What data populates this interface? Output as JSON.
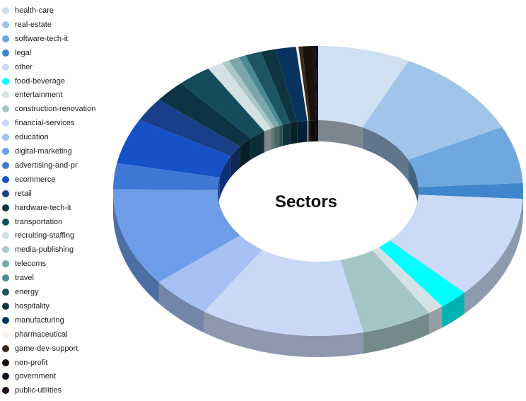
{
  "chart_data": {
    "type": "pie",
    "title": "Sectors",
    "legend_position": "left",
    "series": [
      {
        "name": "health-care",
        "value": 7.6,
        "color": "#cfe0f2"
      },
      {
        "name": "real-estate",
        "value": 10.9,
        "color": "#a1c5ea"
      },
      {
        "name": "software-tech-it",
        "value": 6.7,
        "color": "#6fa8de"
      },
      {
        "name": "legal",
        "value": 1.8,
        "color": "#3f86cc"
      },
      {
        "name": "other",
        "value": 12.0,
        "color": "#cadaf7"
      },
      {
        "name": "food-beverage",
        "value": 2.4,
        "color": "#00ffff"
      },
      {
        "name": "entertainment",
        "value": 1.3,
        "color": "#d5e2e5"
      },
      {
        "name": "construction-renovation",
        "value": 5.8,
        "color": "#a4c4c8"
      },
      {
        "name": "financial-services",
        "value": 13.5,
        "color": "#c9d8f7"
      },
      {
        "name": "education",
        "value": 5.0,
        "color": "#a5c0f2"
      },
      {
        "name": "digital-marketing",
        "value": 11.5,
        "color": "#6d9de8"
      },
      {
        "name": "advertising-and-pr",
        "value": 3.0,
        "color": "#3f78d4"
      },
      {
        "name": "ecommerce",
        "value": 5.3,
        "color": "#1651c8"
      },
      {
        "name": "retail",
        "value": 2.8,
        "color": "#1a3f8a"
      },
      {
        "name": "hardware-tech-it",
        "value": 2.6,
        "color": "#0d3442"
      },
      {
        "name": "transportation",
        "value": 2.8,
        "color": "#144c5c"
      },
      {
        "name": "recruiting-staffing",
        "value": 1.3,
        "color": "#d3e1e4"
      },
      {
        "name": "media-publishing",
        "value": 0.6,
        "color": "#a9c6c8"
      },
      {
        "name": "telecoms",
        "value": 0.9,
        "color": "#7aa7ac"
      },
      {
        "name": "travel",
        "value": 0.6,
        "color": "#4a8a94"
      },
      {
        "name": "energy",
        "value": 1.3,
        "color": "#1d5560"
      },
      {
        "name": "hospitality",
        "value": 1.2,
        "color": "#0e3540"
      },
      {
        "name": "manufacturing",
        "value": 1.7,
        "color": "#093460"
      },
      {
        "name": "pharmaceutical",
        "value": 0.2,
        "color": "#fbf3ec"
      },
      {
        "name": "game-dev-support",
        "value": 0.3,
        "color": "#3a2a1c"
      },
      {
        "name": "non-profit",
        "value": 0.9,
        "color": "#1a120a"
      },
      {
        "name": "government",
        "value": 0.2,
        "color": "#0a0f1e"
      },
      {
        "name": "public-utilities",
        "value": 0.2,
        "color": "#1a0a1e"
      }
    ]
  }
}
